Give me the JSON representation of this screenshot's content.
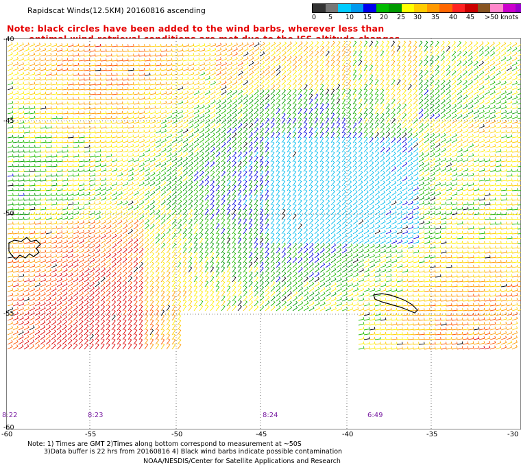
{
  "title": "Rapidscat Winds(12.5KM) 20160816 ascending",
  "note_line1": "Note: black circles have been added to the wind barbs, wherever less than",
  "note_line2": "optimal wind retrieval conditions are met due to the ISS altitude changes.",
  "legend": {
    "labels": [
      "0",
      "5",
      "10",
      "15",
      "20",
      "25",
      "30",
      "35",
      "40",
      "45",
      ">50 knots"
    ],
    "colors": [
      "#333333",
      "#777777",
      "#00ccff",
      "#0099ee",
      "#0000ee",
      "#00bb00",
      "#009900",
      "#ffff00",
      "#ffcc00",
      "#ff9900",
      "#ff6600",
      "#ff2222",
      "#cc0000",
      "#885522",
      "#ff88cc",
      "#cc00cc",
      "#9900cc"
    ]
  },
  "lat_labels": [
    "-40",
    "-45",
    "-50",
    "-55",
    "-60"
  ],
  "lon_labels": [
    "-60",
    "-55",
    "-50",
    "-45",
    "-40",
    "-35",
    "-30"
  ],
  "time_labels": [
    "8:22",
    "8:23",
    "8:24",
    "6:49"
  ],
  "footnote1": "Note: 1) Times are GMT 2)Times along bottom correspond to measurement at ~50S",
  "footnote2": "3)Data buffer is 22 hrs from 20160816 4) Black wind barbs indicate possible contamination",
  "credit": "NOAA/NESDIS/Center for Satellite Applications and Research"
}
